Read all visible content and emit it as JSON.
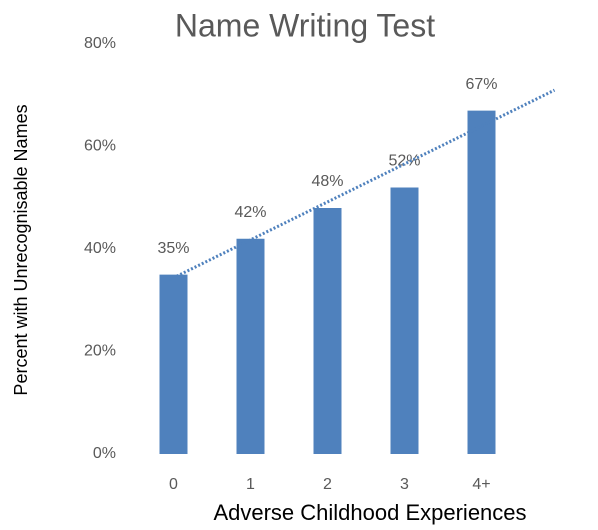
{
  "chart_data": {
    "type": "bar",
    "title": "Name Writing Test",
    "x_label": "Adverse Childhood Experiences",
    "y_label": "Percent with Unrecognisable Names",
    "categories": [
      "0",
      "1",
      "2",
      "3",
      "4+",
      null
    ],
    "values": [
      35,
      42,
      48,
      52,
      67,
      null
    ],
    "value_labels": [
      "35%",
      "42%",
      "48%",
      "52%",
      "67%",
      null
    ],
    "color": "#4f81bd",
    "trendline": "linear",
    "ylim": [
      0,
      80
    ],
    "yticks": [
      {
        "value": 0,
        "label": "0%"
      },
      {
        "value": 20,
        "label": "20%"
      },
      {
        "value": 40,
        "label": "40%"
      },
      {
        "value": 60,
        "label": "60%"
      },
      {
        "value": 80,
        "label": "80%"
      }
    ],
    "grid": false
  }
}
